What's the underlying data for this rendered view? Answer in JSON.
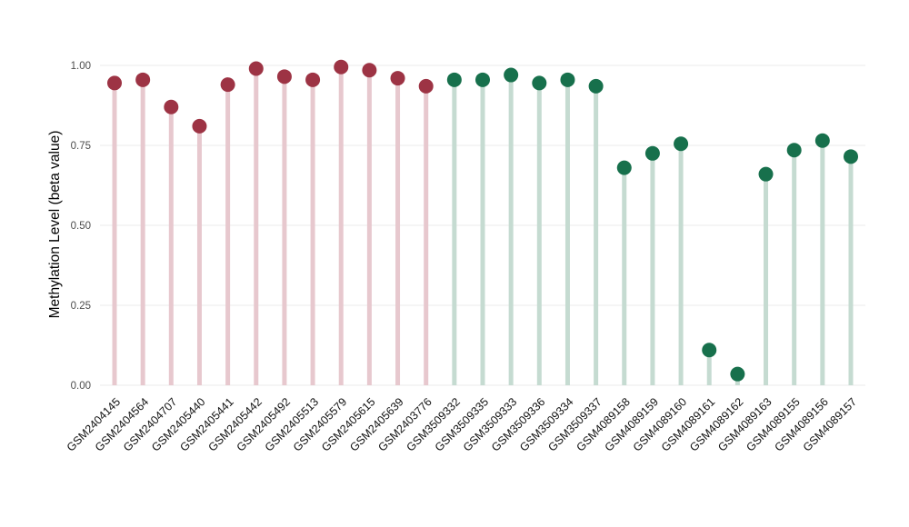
{
  "chart_data": {
    "type": "lollipop",
    "title": "",
    "xlabel": "",
    "ylabel": "Methylation Level (beta value)",
    "ylim": [
      0,
      1.0
    ],
    "yticks": [
      0.0,
      0.25,
      0.5,
      0.75,
      1.0
    ],
    "grid": "horizontal-major",
    "legend": "none",
    "groups": {
      "red": {
        "dot": "#9d3344",
        "stem": "#e7c8ce"
      },
      "green": {
        "dot": "#17704c",
        "stem": "#c5dbd1"
      }
    },
    "points": [
      {
        "label": "GSM2404145",
        "value": 0.945,
        "group": "red"
      },
      {
        "label": "GSM2404564",
        "value": 0.955,
        "group": "red"
      },
      {
        "label": "GSM2404707",
        "value": 0.87,
        "group": "red"
      },
      {
        "label": "GSM2405440",
        "value": 0.81,
        "group": "red"
      },
      {
        "label": "GSM2405441",
        "value": 0.94,
        "group": "red"
      },
      {
        "label": "GSM2405442",
        "value": 0.99,
        "group": "red"
      },
      {
        "label": "GSM2405492",
        "value": 0.965,
        "group": "red"
      },
      {
        "label": "GSM2405513",
        "value": 0.955,
        "group": "red"
      },
      {
        "label": "GSM2405579",
        "value": 0.995,
        "group": "red"
      },
      {
        "label": "GSM2405615",
        "value": 0.985,
        "group": "red"
      },
      {
        "label": "GSM2405639",
        "value": 0.96,
        "group": "red"
      },
      {
        "label": "GSM2403776",
        "value": 0.935,
        "group": "red"
      },
      {
        "label": "GSM3509332",
        "value": 0.955,
        "group": "green"
      },
      {
        "label": "GSM3509335",
        "value": 0.955,
        "group": "green"
      },
      {
        "label": "GSM3509333",
        "value": 0.97,
        "group": "green"
      },
      {
        "label": "GSM3509336",
        "value": 0.945,
        "group": "green"
      },
      {
        "label": "GSM3509334",
        "value": 0.955,
        "group": "green"
      },
      {
        "label": "GSM3509337",
        "value": 0.935,
        "group": "green"
      },
      {
        "label": "GSM4089158",
        "value": 0.68,
        "group": "green"
      },
      {
        "label": "GSM4089159",
        "value": 0.725,
        "group": "green"
      },
      {
        "label": "GSM4089160",
        "value": 0.755,
        "group": "green"
      },
      {
        "label": "GSM4089161",
        "value": 0.11,
        "group": "green"
      },
      {
        "label": "GSM4089162",
        "value": 0.035,
        "group": "green"
      },
      {
        "label": "GSM4089163",
        "value": 0.66,
        "group": "green"
      },
      {
        "label": "GSM4089155",
        "value": 0.735,
        "group": "green"
      },
      {
        "label": "GSM4089156",
        "value": 0.765,
        "group": "green"
      },
      {
        "label": "GSM4089157",
        "value": 0.715,
        "group": "green"
      }
    ]
  }
}
